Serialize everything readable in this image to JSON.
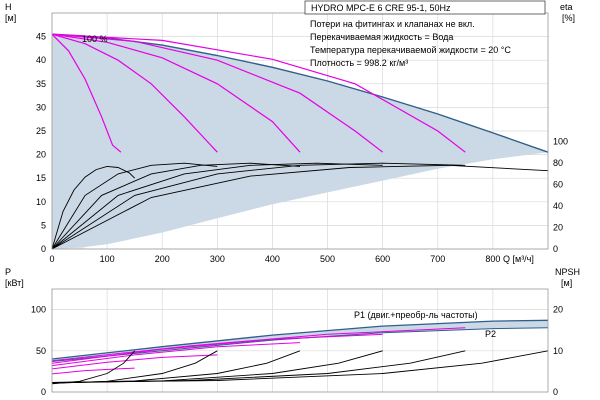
{
  "chart_data": [
    {
      "type": "line",
      "title": "HYDRO MPC-E 6 CRE 95-1, 50Hz",
      "notes": [
        "Потери на фитингах и клапанах не вкл.",
        "Перекачиваемая жидкость = Вода",
        "Температура перекачиваемой жидкости = 20 °C",
        "Плотность = 998.2 кг/м³"
      ],
      "xlabel": "Q [м³/ч]",
      "ylabel_left": "H",
      "ylabel_left_unit": "[м]",
      "ylabel_right": "eta",
      "ylabel_right_unit": "[%]",
      "xlim": [
        0,
        900
      ],
      "ylim": [
        0,
        50
      ],
      "ylim_right": [
        0,
        220
      ],
      "x_ticks": [
        0,
        100,
        200,
        300,
        400,
        500,
        600,
        700,
        800
      ],
      "y_ticks": [
        0,
        5,
        10,
        15,
        20,
        25,
        30,
        35,
        40,
        45
      ],
      "y_right_ticks": [
        0,
        20,
        40,
        60,
        80,
        100
      ],
      "grid": true,
      "annotation": "100 %",
      "envelope_max_H": {
        "x": [
          0,
          50,
          100,
          200,
          300,
          400,
          500,
          600,
          700,
          800,
          900
        ],
        "y": [
          45.5,
          45.2,
          44.7,
          43.2,
          41.0,
          38.5,
          35.6,
          32.2,
          28.6,
          24.6,
          20.5
        ]
      },
      "magenta_H_curves": [
        {
          "x": [
            0,
            30,
            60,
            90,
            110,
            125
          ],
          "y": [
            45.5,
            42,
            36,
            28,
            22,
            20.5
          ]
        },
        {
          "x": [
            0,
            60,
            120,
            180,
            240,
            280,
            300
          ],
          "y": [
            45.5,
            43.5,
            40,
            35,
            28,
            23,
            20.5
          ]
        },
        {
          "x": [
            0,
            100,
            200,
            300,
            400,
            450
          ],
          "y": [
            45.5,
            43.8,
            40.5,
            35,
            27,
            20.5
          ]
        },
        {
          "x": [
            0,
            150,
            300,
            450,
            550,
            600
          ],
          "y": [
            45.5,
            44,
            40,
            33,
            25,
            20.5
          ]
        },
        {
          "x": [
            0,
            200,
            400,
            550,
            700,
            750
          ],
          "y": [
            45.5,
            44.2,
            40.2,
            35,
            25,
            20.5
          ]
        }
      ],
      "black_eta_curves": [
        {
          "x": [
            0,
            20,
            40,
            60,
            80,
            100,
            120,
            140,
            150
          ],
          "y": [
            0,
            35,
            55,
            67,
            74,
            77,
            76,
            71,
            66
          ]
        },
        {
          "x": [
            0,
            60,
            120,
            180,
            240,
            300
          ],
          "y": [
            0,
            50,
            70,
            78,
            80,
            77
          ]
        },
        {
          "x": [
            0,
            90,
            180,
            270,
            360,
            450
          ],
          "y": [
            0,
            50,
            70,
            78,
            80,
            77
          ]
        },
        {
          "x": [
            0,
            120,
            240,
            360,
            480,
            600
          ],
          "y": [
            0,
            50,
            70,
            78,
            80,
            78
          ]
        },
        {
          "x": [
            0,
            150,
            300,
            450,
            600,
            750
          ],
          "y": [
            0,
            50,
            70,
            78,
            80,
            78
          ]
        },
        {
          "x": [
            0,
            180,
            360,
            540,
            720,
            900
          ],
          "y": [
            0,
            48,
            68,
            76,
            78,
            73
          ]
        }
      ]
    },
    {
      "type": "line",
      "ylabel_left": "P",
      "ylabel_left_unit": "[кВт]",
      "ylabel_right": "NPSH",
      "ylabel_right_unit": "[м]",
      "xlim": [
        0,
        900
      ],
      "ylim": [
        0,
        125
      ],
      "ylim_right": [
        0,
        25
      ],
      "y_ticks": [
        0,
        50,
        100
      ],
      "y_right_ticks": [
        0,
        10,
        20
      ],
      "grid": true,
      "series": [
        {
          "name": "P1 (двиг.+преобр-ль частоты)",
          "x": [
            0,
            200,
            400,
            600,
            800,
            900
          ],
          "y": [
            40,
            55,
            69,
            80,
            86,
            87
          ]
        },
        {
          "name": "P2",
          "x": [
            0,
            200,
            400,
            600,
            800,
            900
          ],
          "y": [
            37,
            50,
            63,
            72,
            77,
            78
          ]
        }
      ],
      "magenta_P_curves": [
        {
          "x": [
            0,
            60,
            120,
            150
          ],
          "y": [
            22,
            26,
            28,
            29
          ]
        },
        {
          "x": [
            0,
            100,
            200,
            300
          ],
          "y": [
            28,
            36,
            42,
            45
          ]
        },
        {
          "x": [
            0,
            150,
            300,
            450
          ],
          "y": [
            32,
            45,
            55,
            60
          ]
        },
        {
          "x": [
            0,
            200,
            400,
            600
          ],
          "y": [
            35,
            52,
            64,
            70
          ]
        },
        {
          "x": [
            0,
            250,
            500,
            750
          ],
          "y": [
            38,
            56,
            70,
            78
          ]
        }
      ],
      "black_npsh_curves": [
        {
          "x": [
            0,
            50,
            100,
            130,
            150
          ],
          "y": [
            2,
            2.6,
            4.5,
            7,
            10
          ]
        },
        {
          "x": [
            0,
            100,
            200,
            260,
            300
          ],
          "y": [
            2.1,
            2.6,
            4.5,
            7,
            10
          ]
        },
        {
          "x": [
            0,
            150,
            300,
            390,
            450
          ],
          "y": [
            2.2,
            2.7,
            4.5,
            7,
            10
          ]
        },
        {
          "x": [
            0,
            200,
            400,
            520,
            600
          ],
          "y": [
            2.2,
            2.7,
            4.5,
            7,
            10
          ]
        },
        {
          "x": [
            0,
            250,
            500,
            650,
            750
          ],
          "y": [
            2.3,
            2.8,
            4.5,
            7,
            10
          ]
        },
        {
          "x": [
            0,
            300,
            600,
            780,
            900
          ],
          "y": [
            2.3,
            2.8,
            4.5,
            7,
            10
          ]
        }
      ]
    }
  ]
}
